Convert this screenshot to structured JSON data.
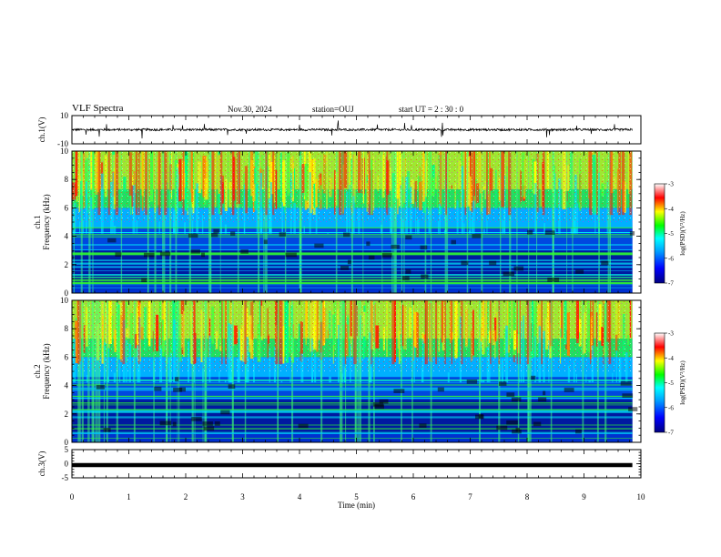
{
  "header": {
    "title": "VLF Spectra",
    "date": "Nov.30, 2024",
    "station": "station=OUJ",
    "start": "start UT =  2 : 30 : 0"
  },
  "chart_data": [
    {
      "type": "line",
      "id": "ch1_waveform",
      "ylabel": "ch.1(V)",
      "ylim": [
        -10,
        10
      ],
      "y_ticks": [
        10,
        -10
      ],
      "x_range": [
        0,
        10
      ],
      "description_level": "noisy waveform near 0 V",
      "x": [
        0,
        1,
        2,
        3,
        4,
        5,
        6,
        7,
        8,
        9,
        9.85
      ],
      "y": [
        0,
        0,
        0,
        0,
        0,
        0,
        0,
        0,
        0,
        0,
        0
      ]
    },
    {
      "type": "heatmap",
      "id": "ch1_spectrogram",
      "ylabel": "Frequency (kHz)",
      "channel_label": "ch.1",
      "ylim": [
        0,
        10
      ],
      "y_ticks": [
        0,
        2,
        4,
        6,
        8,
        10
      ],
      "x_range": [
        0,
        9.85
      ],
      "colorbar": {
        "label": "log(PSD)(V²/Hz)",
        "ticks": [
          -3,
          -4,
          -5,
          -6,
          -7
        ],
        "range": [
          -7,
          -3
        ]
      }
    },
    {
      "type": "heatmap",
      "id": "ch2_spectrogram",
      "ylabel": "Frequency (kHz)",
      "channel_label": "ch.2",
      "ylim": [
        0,
        10
      ],
      "y_ticks": [
        0,
        2,
        4,
        6,
        8,
        10
      ],
      "x_range": [
        0,
        9.85
      ],
      "colorbar": {
        "label": "log(PSD)(V²/Hz)",
        "ticks": [
          -3,
          -4,
          -5,
          -6,
          -7
        ],
        "range": [
          -7,
          -3
        ]
      }
    },
    {
      "type": "line",
      "id": "ch3_waveform",
      "ylabel": "ch.3(V)",
      "ylim": [
        -5,
        5
      ],
      "y_ticks": [
        5,
        0,
        -5
      ],
      "x": [
        0,
        9.85
      ],
      "y": [
        -0.5,
        -0.5
      ]
    }
  ],
  "xaxis": {
    "label": "Time (min)",
    "ticks": [
      0,
      1,
      2,
      3,
      4,
      5,
      6,
      7,
      8,
      9,
      10
    ],
    "range": [
      0,
      10
    ]
  }
}
